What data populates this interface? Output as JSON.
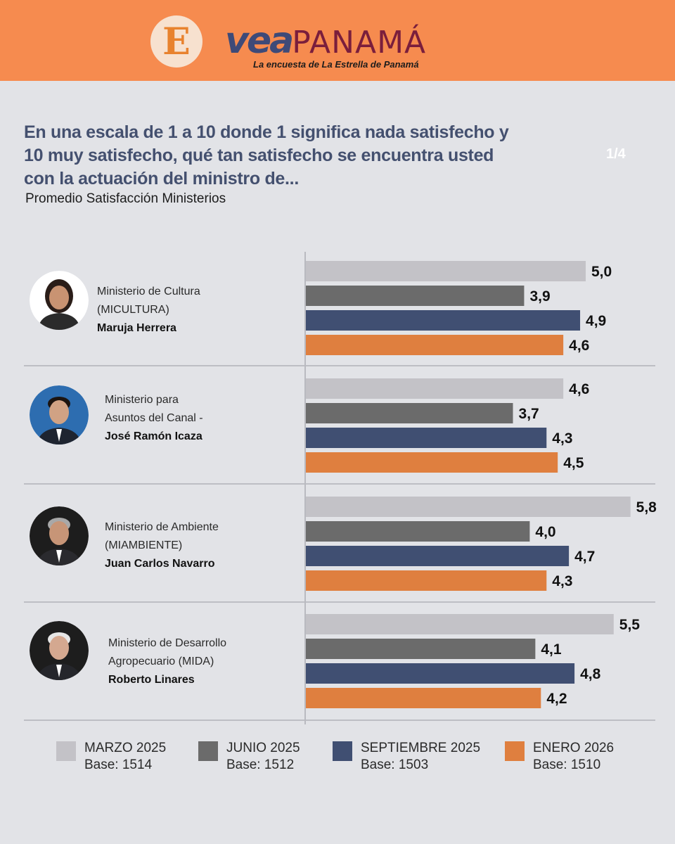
{
  "header": {
    "logo_letter": "E",
    "brand_vea": "vea",
    "brand_panama": "PANAMÁ",
    "tagline": "La encuesta de La Estrella de Panamá"
  },
  "question": "En una escala de 1 a 10 donde 1 significa nada satisfecho y 10 muy satisfecho, qué tan satisfecho se encuentra usted con la actuación del ministro de...",
  "page_indicator": "1/4",
  "subtitle": "Promedio Satisfacción Ministerios",
  "colors": {
    "header_bg": "#f68b4f",
    "background": "#e2e3e7",
    "question_text": "#44506f",
    "series": [
      "#c3c2c7",
      "#6b6b6b",
      "#404f72",
      "#df7f3f"
    ]
  },
  "groups": [
    {
      "ministry_line1": "Ministerio de Cultura",
      "ministry_line2": "(MICULTURA)",
      "minister": "Maruja Herrera"
    },
    {
      "ministry_line1": "Ministerio para",
      "ministry_line2": "Asuntos del Canal -",
      "minister": "José Ramón Icaza"
    },
    {
      "ministry_line1": "Ministerio de Ambiente",
      "ministry_line2": "(MIAMBIENTE)",
      "minister": "Juan Carlos Navarro"
    },
    {
      "ministry_line1": "Ministerio de Desarrollo",
      "ministry_line2": "Agropecuario (MIDA)",
      "minister": "Roberto Linares"
    }
  ],
  "legend": [
    {
      "label": "MARZO 2025",
      "base": "Base: 1514"
    },
    {
      "label": "JUNIO 2025",
      "base": "Base: 1512"
    },
    {
      "label": "SEPTIEMBRE 2025",
      "base": "Base: 1503"
    },
    {
      "label": "ENERO 2026",
      "base": "Base: 1510"
    }
  ],
  "chart_data": {
    "type": "bar",
    "orientation": "horizontal",
    "categories": [
      "Ministerio de Cultura (MICULTURA) Maruja Herrera",
      "Ministerio para Asuntos del Canal - José Ramón Icaza",
      "Ministerio de Ambiente (MIAMBIENTE) Juan Carlos Navarro",
      "Ministerio de Desarrollo Agropecuario (MIDA) Roberto Linares"
    ],
    "series": [
      {
        "name": "MARZO 2025",
        "values": [
          5.0,
          4.6,
          5.8,
          5.5
        ],
        "labels": [
          "5,0",
          "4,6",
          "5,8",
          "5,5"
        ]
      },
      {
        "name": "JUNIO 2025",
        "values": [
          3.9,
          3.7,
          4.0,
          4.1
        ],
        "labels": [
          "3,9",
          "3,7",
          "4,0",
          "4,1"
        ]
      },
      {
        "name": "SEPTIEMBRE 2025",
        "values": [
          4.9,
          4.3,
          4.7,
          4.8
        ],
        "labels": [
          "4,9",
          "4,3",
          "4,7",
          "4,8"
        ]
      },
      {
        "name": "ENERO 2026",
        "values": [
          4.6,
          4.5,
          4.3,
          4.2
        ],
        "labels": [
          "4,6",
          "4,5",
          "4,3",
          "4,2"
        ]
      }
    ],
    "scale": [
      1,
      10
    ],
    "grid": false,
    "legend_position": "bottom"
  }
}
